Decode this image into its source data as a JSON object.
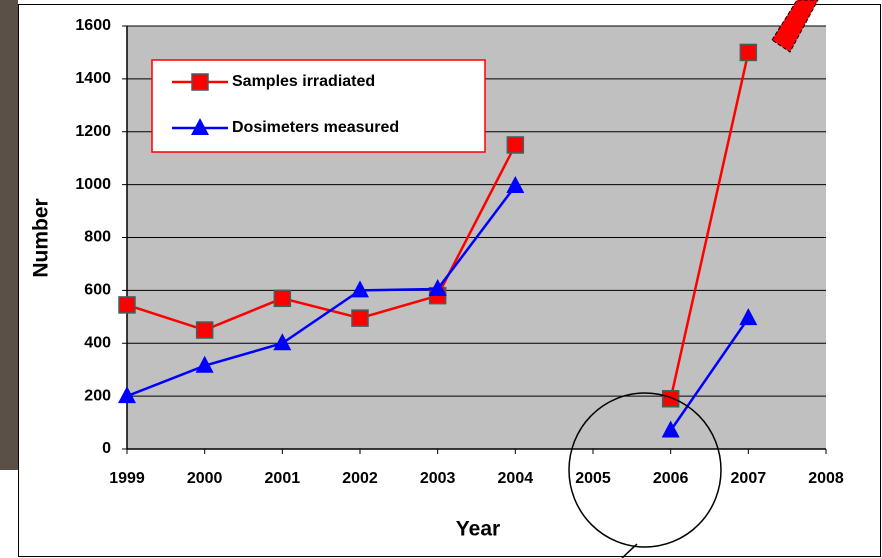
{
  "chart_data": {
    "type": "line",
    "x": [
      1999,
      2000,
      2001,
      2002,
      2003,
      2004,
      2005,
      2006,
      2007
    ],
    "series": [
      {
        "name": "Samples irradiated",
        "color": "#ff0000",
        "marker": "square",
        "values": [
          545,
          450,
          570,
          495,
          580,
          1150,
          null,
          190,
          1500
        ]
      },
      {
        "name": "Dosimeters measured",
        "color": "#0000ff",
        "marker": "triangle",
        "values": [
          200,
          315,
          400,
          600,
          605,
          995,
          null,
          70,
          495
        ]
      }
    ],
    "xlabel": "Year",
    "ylabel": "Number",
    "xlim": [
      1999,
      2008
    ],
    "xticks": [
      1999,
      2000,
      2001,
      2002,
      2003,
      2004,
      2005,
      2006,
      2007,
      2008
    ],
    "ylim": [
      0,
      1600
    ],
    "yticks": [
      0,
      200,
      400,
      600,
      800,
      1000,
      1200,
      1400,
      1600
    ],
    "grid": true,
    "legend": "upper left"
  }
}
